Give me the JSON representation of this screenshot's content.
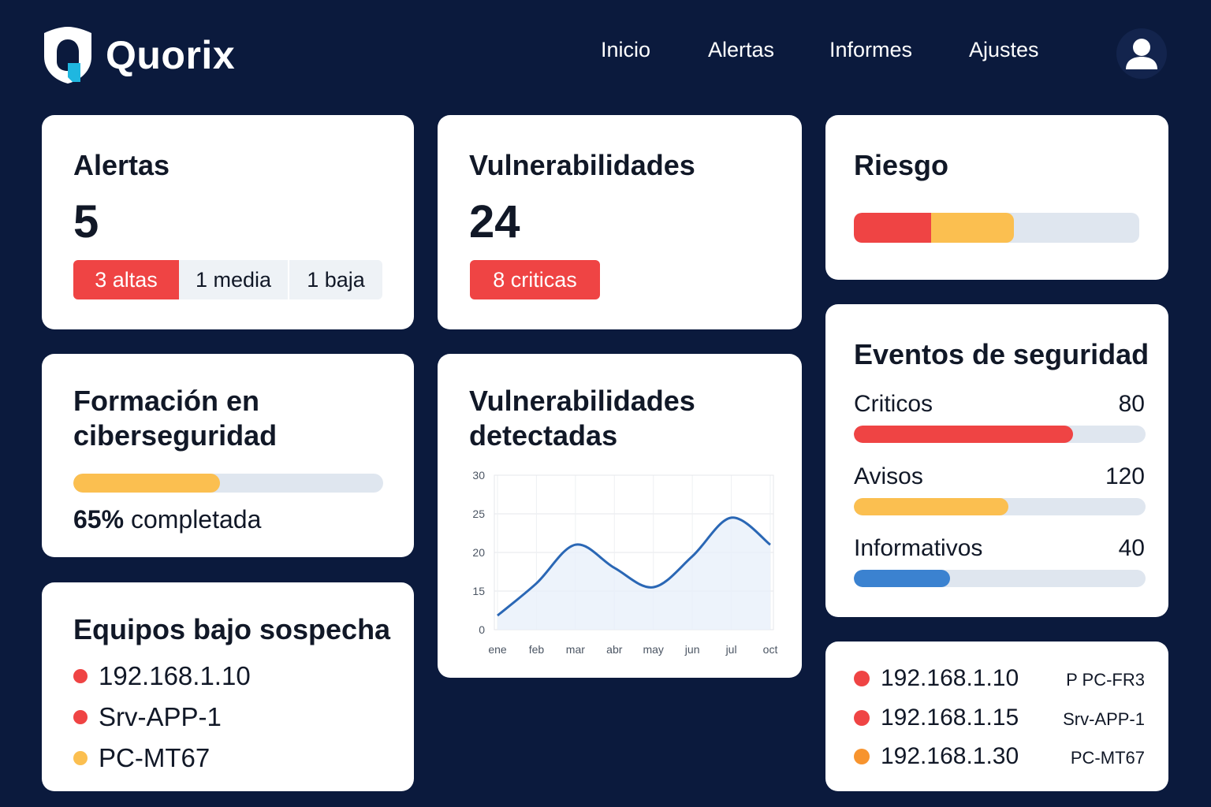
{
  "app": {
    "name": "Quorix"
  },
  "nav": {
    "items": [
      "Inicio",
      "Alertas",
      "Informes",
      "Ajustes"
    ]
  },
  "colors": {
    "background": "#0b1a3d",
    "red": "#ef4444",
    "yellow": "#fbbf50",
    "blue": "#3b82d0",
    "orange": "#f7942e"
  },
  "alerts": {
    "title": "Alertas",
    "count": "5",
    "breakdown": [
      "3 altas",
      "1 media",
      "1 baja"
    ]
  },
  "vulns": {
    "title": "Vulnerabilidades",
    "count": "24",
    "badge": "8 criticas"
  },
  "risk": {
    "title": "Riesgo",
    "levels": [
      {
        "color": "#ef4444",
        "fraction": 0.27
      },
      {
        "color": "#fbbf50",
        "fraction": 0.29
      }
    ]
  },
  "training": {
    "title_line1": "Formación en",
    "title_line2": "ciberseguridad",
    "percent": 65,
    "percent_label": "65%",
    "suffix": "completada"
  },
  "suspect": {
    "title": "Equipos bajo sospecha",
    "items": [
      {
        "label": "192.168.1.10",
        "color": "#ef4444"
      },
      {
        "label": "Srv-APP-1",
        "color": "#ef4444"
      },
      {
        "label": "PC-MT67",
        "color": "#fbbf50"
      }
    ]
  },
  "detected": {
    "title_line1": "Vulnerabilidades",
    "title_line2": "detectadas"
  },
  "chart_data": {
    "type": "line",
    "title": "Vulnerabilidades detectadas",
    "categories": [
      "ene",
      "feb",
      "mar",
      "abr",
      "may",
      "jun",
      "jul",
      "oct"
    ],
    "yticks": [
      0,
      15,
      20,
      25,
      30
    ],
    "ylim": [
      0,
      30
    ],
    "series": [
      {
        "values": [
          5.5,
          16,
          21,
          18,
          15.5,
          19.5,
          24.5,
          21
        ]
      }
    ],
    "grid": true,
    "area_fill": true
  },
  "events": {
    "title": "Eventos de seguridad",
    "items": [
      {
        "label": "Criticos",
        "value": "80",
        "fraction": 0.75,
        "color": "#ef4444"
      },
      {
        "label": "Avisos",
        "value": "120",
        "fraction": 0.53,
        "color": "#fbbf50"
      },
      {
        "label": "Informativos",
        "value": "40",
        "fraction": 0.33,
        "color": "#3b82d0"
      }
    ]
  },
  "hosts": {
    "items": [
      {
        "ip": "192.168.1.10",
        "name": "P PC-FR3",
        "color": "#ef4444"
      },
      {
        "ip": "192.168.1.15",
        "name": "Srv-APP-1",
        "color": "#ef4444"
      },
      {
        "ip": "192.168.1.30",
        "name": "PC-MT67",
        "color": "#f7942e"
      }
    ]
  }
}
